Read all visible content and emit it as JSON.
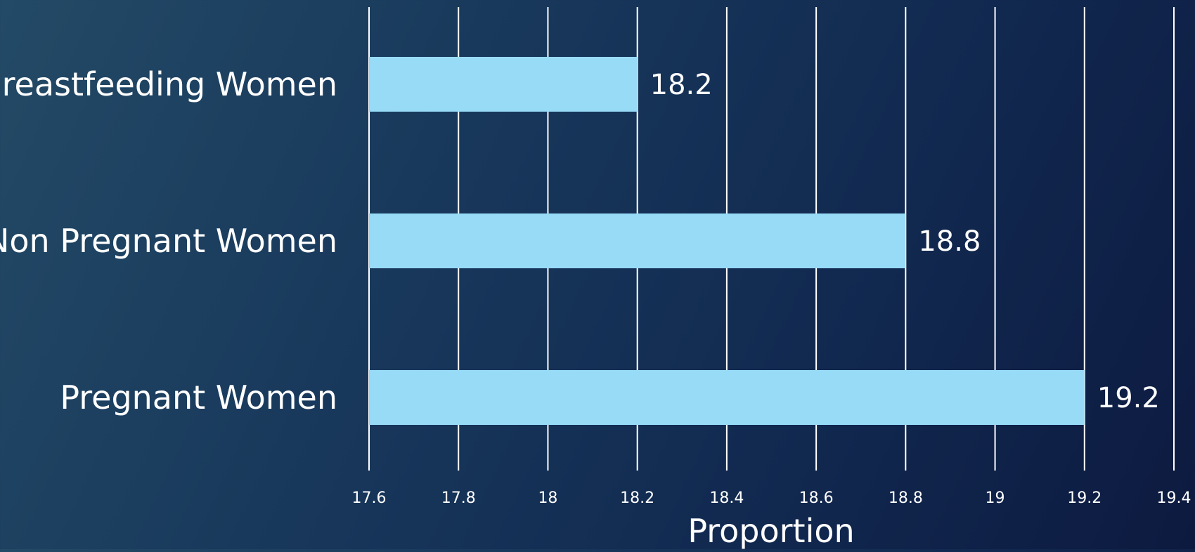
{
  "chart_data": {
    "type": "bar",
    "orientation": "horizontal",
    "categories": [
      "Breastfeeding Women",
      "Non Pregnant Women",
      "Pregnant Women"
    ],
    "values": [
      18.2,
      18.8,
      19.2
    ],
    "value_labels": [
      "18.2",
      "18.8",
      "19.2"
    ],
    "title": "",
    "xlabel": "Proportion",
    "ylabel": "",
    "xlim": [
      17.6,
      19.4
    ],
    "xticks": [
      "17.6",
      "17.8",
      "18",
      "18.2",
      "18.4",
      "18.6",
      "18.8",
      "19",
      "19.2",
      "19.4"
    ],
    "grid": "vertical",
    "legend": "none",
    "colors": {
      "bar": "#97dbf7",
      "grid": "#ffffff",
      "text": "#ffffff"
    }
  }
}
